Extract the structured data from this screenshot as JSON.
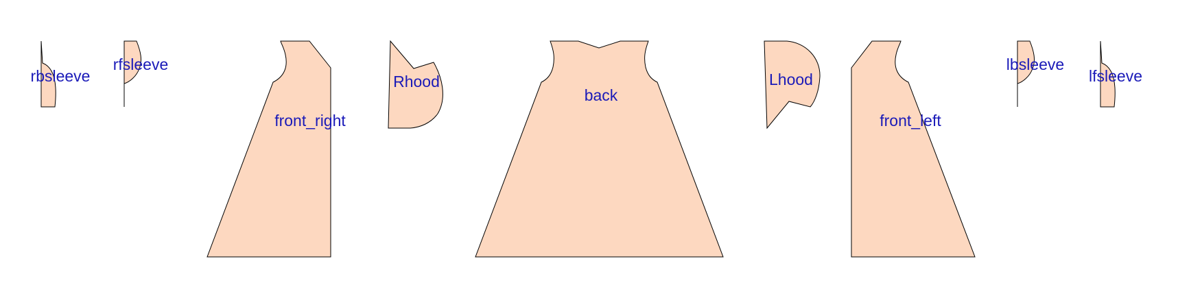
{
  "colors": {
    "fill": "#fdd8c0",
    "outline": "#000000",
    "label": "#1a1ab8",
    "background": "#ffffff"
  },
  "pieces": [
    {
      "id": "rbsleeve",
      "label": "rbsleeve"
    },
    {
      "id": "rfsleeve",
      "label": "rfsleeve"
    },
    {
      "id": "front_right",
      "label": "front_right"
    },
    {
      "id": "rhood",
      "label": "Rhood"
    },
    {
      "id": "back",
      "label": "back"
    },
    {
      "id": "lhood",
      "label": "Lhood"
    },
    {
      "id": "front_left",
      "label": "front_left"
    },
    {
      "id": "lbsleeve",
      "label": "lbsleeve"
    },
    {
      "id": "lfsleeve",
      "label": "lfsleeve"
    }
  ]
}
